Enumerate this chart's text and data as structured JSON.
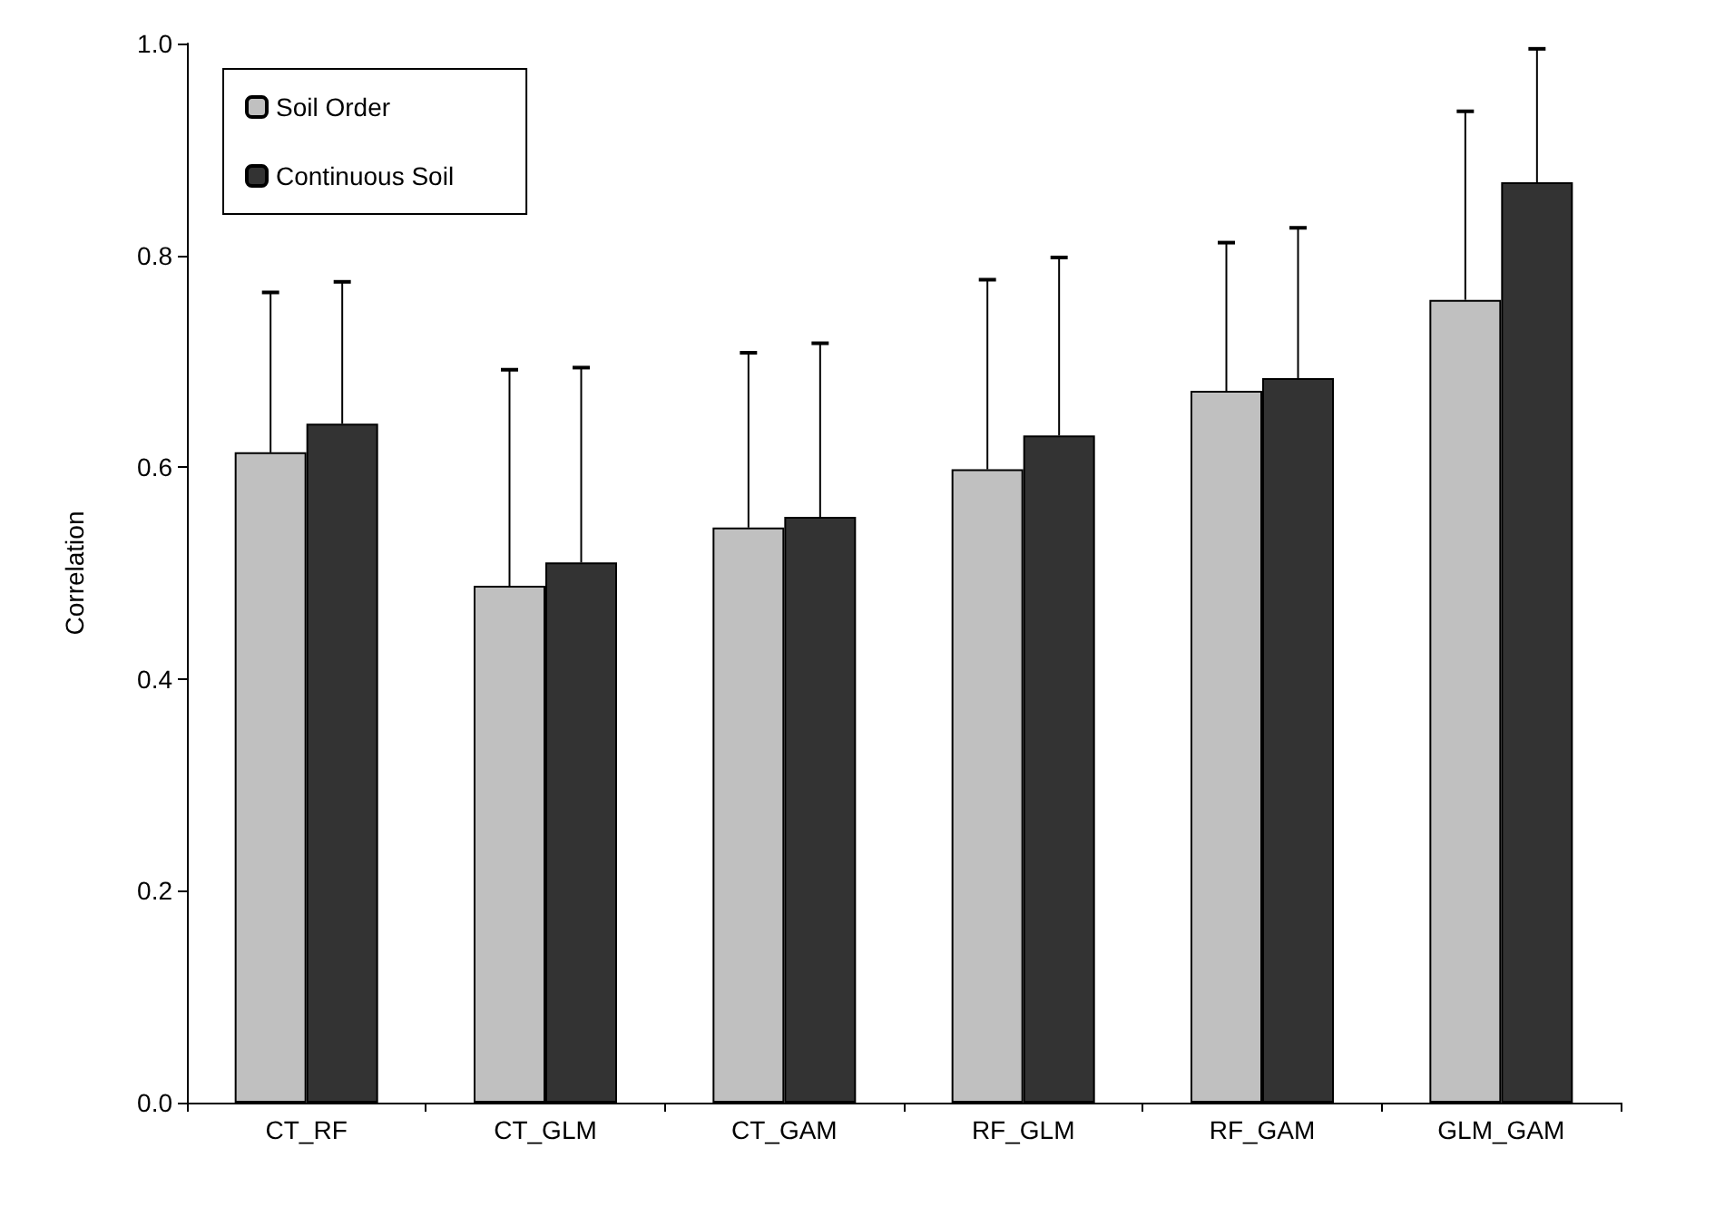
{
  "chart_data": {
    "type": "bar",
    "ylabel": "Correlation",
    "categories": [
      "CT_RF",
      "CT_GLM",
      "CT_GAM",
      "RF_GLM",
      "RF_GAM",
      "GLM_GAM"
    ],
    "series": [
      {
        "name": "Soil Order",
        "color": "#c0c0c0",
        "values": [
          0.614,
          0.488,
          0.543,
          0.598,
          0.672,
          0.758
        ],
        "errors": [
          [
            0.614,
            0.765
          ],
          [
            0.488,
            0.692
          ],
          [
            0.543,
            0.708
          ],
          [
            0.598,
            0.777
          ],
          [
            0.672,
            0.812
          ],
          [
            0.758,
            0.936
          ]
        ]
      },
      {
        "name": "Continuous Soil",
        "color": "#333333",
        "values": [
          0.641,
          0.51,
          0.553,
          0.63,
          0.684,
          0.869
        ],
        "errors": [
          [
            0.641,
            0.775
          ],
          [
            0.51,
            0.694
          ],
          [
            0.553,
            0.717
          ],
          [
            0.63,
            0.798
          ],
          [
            0.684,
            0.826
          ],
          [
            0.869,
            0.995
          ]
        ]
      }
    ],
    "ylim": [
      0,
      1
    ],
    "yticks": [
      {
        "value": 0,
        "label": "0.0"
      },
      {
        "value": 0.2,
        "label": "0.2"
      },
      {
        "value": 0.4,
        "label": "0.4"
      },
      {
        "value": 0.6,
        "label": "0.6"
      },
      {
        "value": 0.8,
        "label": "0.8"
      },
      {
        "value": 1,
        "label": "1.0"
      }
    ],
    "grid": false,
    "legend": "top left"
  }
}
